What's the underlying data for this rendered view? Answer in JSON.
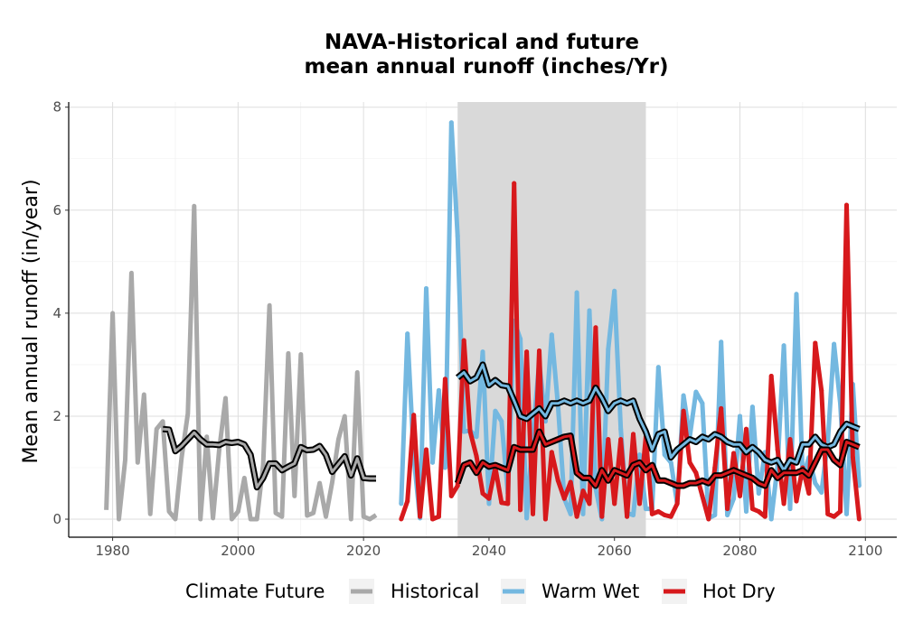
{
  "chart_data": {
    "type": "line",
    "title_line1": "NAVA-Historical and future",
    "title_line2": "mean annual runoff (inches/Yr)",
    "xlabel": "",
    "ylabel": "Mean annual runoff (in/year)",
    "xlim": [
      1973,
      2105
    ],
    "ylim": [
      -0.35,
      8.1
    ],
    "xticks": [
      1980,
      2000,
      2020,
      2040,
      2060,
      2080,
      2100
    ],
    "yticks": [
      0,
      2,
      4,
      6,
      8
    ],
    "grid": true,
    "shaded_period": [
      2035,
      2065
    ],
    "legend_title": "Climate Future",
    "legend_position": "bottom",
    "series": [
      {
        "name": "Historical",
        "color": "#a9a9a9",
        "x": [
          1979,
          1980,
          1981,
          1982,
          1983,
          1984,
          1985,
          1986,
          1987,
          1988,
          1989,
          1990,
          1991,
          1992,
          1993,
          1994,
          1995,
          1996,
          1997,
          1998,
          1999,
          2000,
          2001,
          2002,
          2003,
          2004,
          2005,
          2006,
          2007,
          2008,
          2009,
          2010,
          2011,
          2012,
          2013,
          2014,
          2015,
          2016,
          2017,
          2018,
          2019,
          2020,
          2021,
          2022
        ],
        "y": [
          0.18,
          4.0,
          0.0,
          1.15,
          4.78,
          1.1,
          2.42,
          0.1,
          1.75,
          1.9,
          0.15,
          0.0,
          1.2,
          2.05,
          6.08,
          0.0,
          1.6,
          0.02,
          1.35,
          2.35,
          0.0,
          0.15,
          0.8,
          0.0,
          0.0,
          1.05,
          4.15,
          0.12,
          0.05,
          3.22,
          0.45,
          3.2,
          0.07,
          0.12,
          0.7,
          0.05,
          0.72,
          1.55,
          2.0,
          0.0,
          2.85,
          0.05,
          0.0,
          0.08
        ]
      },
      {
        "name": "Historical-smooth",
        "color": "#a9a9a9",
        "smooth": true,
        "x": [
          1988,
          1989,
          1990,
          1991,
          1992,
          1993,
          1994,
          1995,
          1996,
          1997,
          1998,
          1999,
          2000,
          2001,
          2002,
          2003,
          2004,
          2005,
          2006,
          2007,
          2008,
          2009,
          2010,
          2011,
          2012,
          2013,
          2014,
          2015,
          2016,
          2017,
          2018,
          2019,
          2020,
          2021,
          2022
        ],
        "y": [
          1.75,
          1.74,
          1.32,
          1.42,
          1.55,
          1.68,
          1.55,
          1.45,
          1.45,
          1.44,
          1.5,
          1.48,
          1.5,
          1.45,
          1.25,
          0.62,
          0.8,
          1.08,
          1.08,
          0.95,
          1.02,
          1.08,
          1.4,
          1.34,
          1.35,
          1.42,
          1.25,
          0.92,
          1.07,
          1.22,
          0.85,
          1.18,
          0.8,
          0.79,
          0.79
        ]
      },
      {
        "name": "Warm Wet",
        "color": "#74b8e0",
        "x": [
          2026,
          2027,
          2028,
          2029,
          2030,
          2031,
          2032,
          2033,
          2034,
          2035,
          2036,
          2037,
          2038,
          2039,
          2040,
          2041,
          2042,
          2043,
          2044,
          2045,
          2046,
          2047,
          2048,
          2049,
          2050,
          2051,
          2052,
          2053,
          2054,
          2055,
          2056,
          2057,
          2058,
          2059,
          2060,
          2061,
          2062,
          2063,
          2064,
          2065,
          2066,
          2067,
          2068,
          2069,
          2070,
          2071,
          2072,
          2073,
          2074,
          2075,
          2076,
          2077,
          2078,
          2079,
          2080,
          2081,
          2082,
          2083,
          2084,
          2085,
          2086,
          2087,
          2088,
          2089,
          2090,
          2091,
          2092,
          2093,
          2094,
          2095,
          2096,
          2097,
          2098,
          2099
        ],
        "y": [
          0.3,
          3.6,
          1.2,
          0.02,
          4.48,
          1.1,
          2.5,
          1.0,
          7.7,
          5.5,
          1.7,
          1.72,
          1.6,
          3.25,
          0.3,
          2.1,
          1.9,
          0.5,
          3.85,
          3.5,
          0.02,
          1.65,
          3.05,
          1.9,
          3.58,
          2.2,
          0.4,
          0.1,
          4.4,
          0.1,
          4.05,
          0.6,
          0.0,
          3.3,
          4.43,
          1.75,
          0.12,
          0.08,
          1.25,
          0.2,
          0.2,
          2.95,
          1.25,
          1.1,
          0.3,
          2.4,
          1.6,
          2.47,
          2.25,
          0.02,
          0.08,
          3.44,
          0.08,
          0.4,
          2.0,
          0.15,
          2.18,
          0.5,
          1.3,
          0.0,
          1.05,
          3.37,
          0.2,
          4.37,
          0.8,
          1.2,
          0.7,
          0.52,
          1.5,
          3.4,
          2.25,
          0.1,
          2.62,
          0.65
        ]
      },
      {
        "name": "Warm Wet-smooth",
        "color": "#74b8e0",
        "smooth": true,
        "x": [
          2035,
          2036,
          2037,
          2038,
          2039,
          2040,
          2041,
          2042,
          2043,
          2044,
          2045,
          2046,
          2047,
          2048,
          2049,
          2050,
          2051,
          2052,
          2053,
          2054,
          2055,
          2056,
          2057,
          2058,
          2059,
          2060,
          2061,
          2062,
          2063,
          2064,
          2065,
          2066,
          2067,
          2068,
          2069,
          2070,
          2071,
          2072,
          2073,
          2074,
          2075,
          2076,
          2077,
          2078,
          2079,
          2080,
          2081,
          2082,
          2083,
          2084,
          2085,
          2086,
          2087,
          2088,
          2089,
          2090,
          2091,
          2092,
          2093,
          2094,
          2095,
          2096,
          2097,
          2098,
          2099
        ],
        "y": [
          2.75,
          2.85,
          2.68,
          2.75,
          3.0,
          2.6,
          2.7,
          2.6,
          2.58,
          2.3,
          2.0,
          1.95,
          2.05,
          2.15,
          2.0,
          2.25,
          2.25,
          2.3,
          2.25,
          2.3,
          2.25,
          2.3,
          2.55,
          2.35,
          2.1,
          2.25,
          2.3,
          2.25,
          2.3,
          1.95,
          1.7,
          1.35,
          1.65,
          1.7,
          1.2,
          1.35,
          1.45,
          1.55,
          1.5,
          1.6,
          1.55,
          1.65,
          1.6,
          1.5,
          1.45,
          1.45,
          1.3,
          1.4,
          1.3,
          1.15,
          1.1,
          1.15,
          0.95,
          1.15,
          1.1,
          1.45,
          1.45,
          1.6,
          1.45,
          1.4,
          1.45,
          1.7,
          1.85,
          1.8,
          1.75
        ]
      },
      {
        "name": "Hot Dry",
        "color": "#d7191c",
        "x": [
          2026,
          2027,
          2028,
          2029,
          2030,
          2031,
          2032,
          2033,
          2034,
          2035,
          2036,
          2037,
          2038,
          2039,
          2040,
          2041,
          2042,
          2043,
          2044,
          2045,
          2046,
          2047,
          2048,
          2049,
          2050,
          2051,
          2052,
          2053,
          2054,
          2055,
          2056,
          2057,
          2058,
          2059,
          2060,
          2061,
          2062,
          2063,
          2064,
          2065,
          2066,
          2067,
          2068,
          2069,
          2070,
          2071,
          2072,
          2073,
          2074,
          2075,
          2076,
          2077,
          2078,
          2079,
          2080,
          2081,
          2082,
          2083,
          2084,
          2085,
          2086,
          2087,
          2088,
          2089,
          2090,
          2091,
          2092,
          2093,
          2094,
          2095,
          2096,
          2097,
          2098,
          2099
        ],
        "y": [
          0.0,
          0.35,
          2.02,
          0.05,
          1.35,
          0.0,
          0.05,
          2.72,
          0.45,
          0.65,
          3.47,
          1.7,
          1.22,
          0.5,
          0.4,
          1.0,
          0.32,
          0.3,
          6.52,
          0.18,
          3.25,
          0.1,
          3.27,
          0.0,
          1.3,
          0.75,
          0.4,
          0.72,
          0.05,
          0.55,
          0.3,
          3.72,
          0.05,
          1.55,
          0.3,
          1.55,
          0.05,
          1.65,
          0.3,
          1.6,
          0.1,
          0.15,
          0.08,
          0.05,
          0.3,
          2.1,
          1.1,
          0.9,
          0.45,
          0.0,
          1.0,
          2.15,
          0.2,
          1.28,
          0.45,
          1.75,
          0.2,
          0.15,
          0.05,
          2.78,
          1.35,
          0.3,
          1.55,
          0.35,
          1.0,
          0.5,
          3.42,
          2.5,
          0.1,
          0.05,
          0.15,
          6.1,
          1.2,
          0.0
        ]
      },
      {
        "name": "Hot Dry-smooth",
        "color": "#d7191c",
        "smooth": true,
        "x": [
          2035,
          2036,
          2037,
          2038,
          2039,
          2040,
          2041,
          2042,
          2043,
          2044,
          2045,
          2046,
          2047,
          2048,
          2049,
          2050,
          2051,
          2052,
          2053,
          2054,
          2055,
          2056,
          2057,
          2058,
          2059,
          2060,
          2061,
          2062,
          2063,
          2064,
          2065,
          2066,
          2067,
          2068,
          2069,
          2070,
          2071,
          2072,
          2073,
          2074,
          2075,
          2076,
          2077,
          2078,
          2079,
          2080,
          2081,
          2082,
          2083,
          2084,
          2085,
          2086,
          2087,
          2088,
          2089,
          2090,
          2091,
          2092,
          2093,
          2094,
          2095,
          2096,
          2097,
          2098,
          2099
        ],
        "y": [
          0.7,
          1.05,
          1.1,
          0.9,
          1.1,
          1.02,
          1.05,
          1.0,
          0.95,
          1.4,
          1.35,
          1.35,
          1.35,
          1.7,
          1.45,
          1.5,
          1.55,
          1.6,
          1.62,
          0.9,
          0.8,
          0.8,
          0.65,
          0.95,
          0.75,
          0.95,
          0.9,
          0.85,
          1.05,
          1.1,
          0.95,
          1.05,
          0.75,
          0.75,
          0.7,
          0.65,
          0.65,
          0.7,
          0.7,
          0.75,
          0.7,
          0.85,
          0.85,
          0.9,
          0.95,
          0.9,
          0.85,
          0.8,
          0.7,
          0.65,
          0.95,
          0.8,
          0.9,
          0.9,
          0.9,
          0.95,
          0.85,
          1.1,
          1.35,
          1.35,
          1.15,
          1.05,
          1.5,
          1.45,
          1.4
        ]
      }
    ]
  }
}
